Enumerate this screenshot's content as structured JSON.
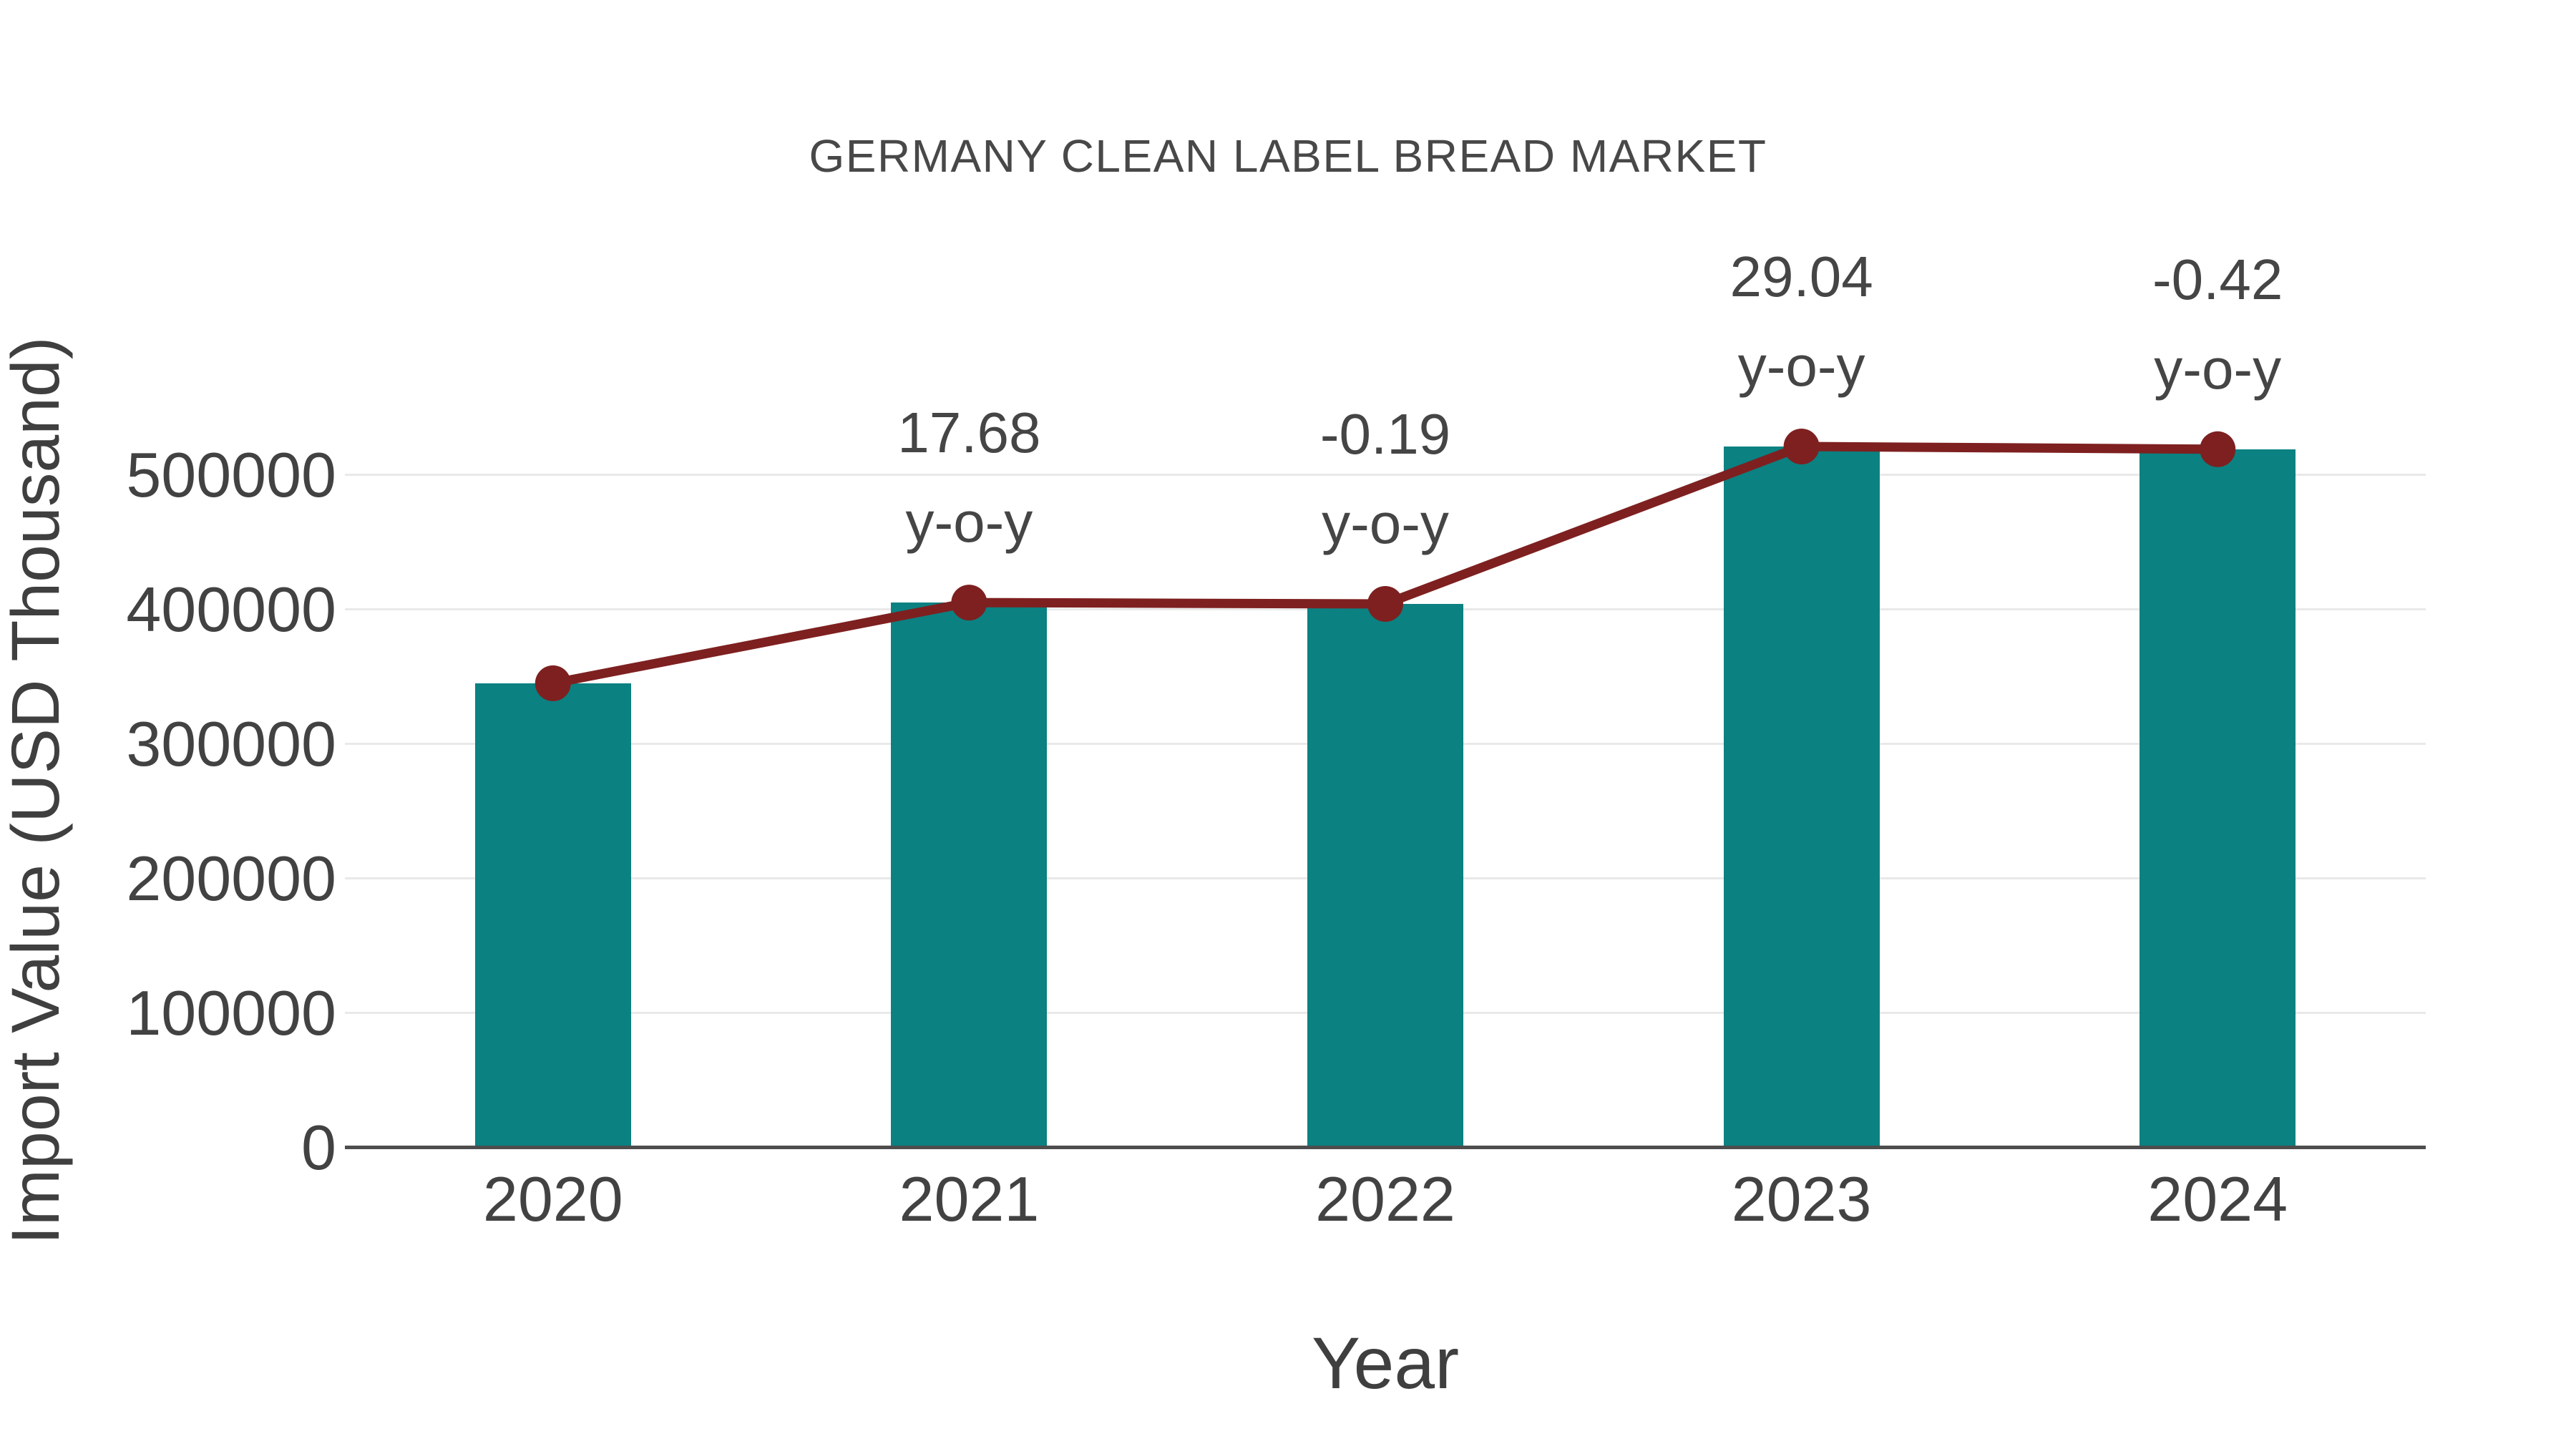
{
  "chart_data": {
    "type": "bar",
    "title": "GERMANY CLEAN LABEL BREAD MARKET",
    "xlabel": "Year",
    "ylabel": "Import Value (USD Thousand)",
    "categories": [
      "2020",
      "2021",
      "2022",
      "2023",
      "2024"
    ],
    "series": [
      {
        "name": "Import Value bars",
        "type": "bar",
        "color": "#0B8181",
        "values": [
          345000,
          405000,
          404000,
          521000,
          519000
        ]
      },
      {
        "name": "Import Value trend line",
        "type": "line",
        "color": "#7E2020",
        "marker": "circle",
        "values": [
          345000,
          405000,
          404000,
          521000,
          519000
        ]
      }
    ],
    "annotations": [
      {
        "category": "2021",
        "lines": [
          "17.68",
          "y-o-y"
        ]
      },
      {
        "category": "2022",
        "lines": [
          "-0.19",
          "y-o-y"
        ]
      },
      {
        "category": "2023",
        "lines": [
          "29.04",
          "y-o-y"
        ]
      },
      {
        "category": "2024",
        "lines": [
          "-0.42",
          "y-o-y"
        ]
      }
    ],
    "yticks": [
      0,
      100000,
      200000,
      300000,
      400000,
      500000
    ],
    "ylim": [
      0,
      560000
    ],
    "grid": true,
    "legend_position": "none",
    "value_units": "USD Thousand"
  },
  "style_colors": {
    "bar": "#0B8181",
    "line": "#7E2020",
    "grid": "#e9e9e9",
    "axis": "#4d4d4d",
    "text": "#424242"
  }
}
